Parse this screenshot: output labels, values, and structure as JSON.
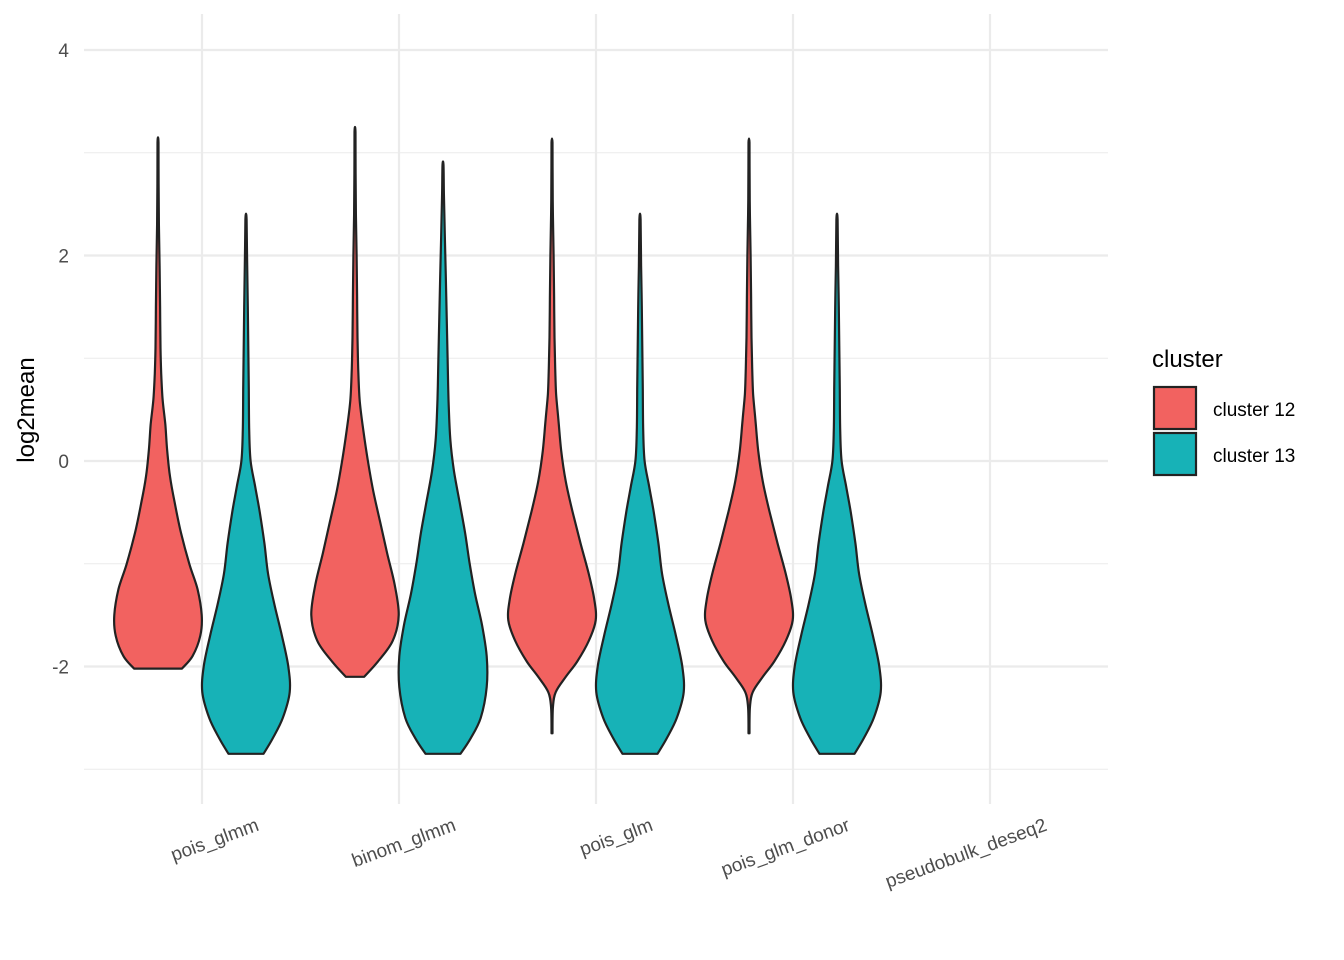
{
  "chart_data": {
    "type": "violin",
    "title": "",
    "xlabel": "",
    "ylabel": "log2mean",
    "ylim": [
      -3.0,
      4.3
    ],
    "y_ticks": [
      -2,
      0,
      2,
      4
    ],
    "y_tick_labels": [
      "-2",
      "0",
      "2",
      "4"
    ],
    "categories": [
      "pois_glmm",
      "binom_glmm",
      "pois_glm",
      "pois_glm_donor",
      "pseudobulk_deseq2"
    ],
    "grid": true,
    "legend": {
      "title": "cluster",
      "position": "right",
      "entries": [
        {
          "label": "cluster 12",
          "color": "#F8766D"
        },
        {
          "label": "cluster 13",
          "color": "#00BFC4"
        }
      ]
    },
    "series": [
      {
        "name": "cluster 12",
        "color": "#F26260",
        "violins": [
          {
            "category": "pois_glmm",
            "min": -2.02,
            "max": 3.1,
            "profile": [
              [
                -2.02,
                0.52
              ],
              [
                -1.9,
                0.75
              ],
              [
                -1.7,
                0.92
              ],
              [
                -1.5,
                0.95
              ],
              [
                -1.25,
                0.86
              ],
              [
                -1.0,
                0.68
              ],
              [
                -0.7,
                0.5
              ],
              [
                -0.4,
                0.36
              ],
              [
                -0.15,
                0.26
              ],
              [
                0.1,
                0.2
              ],
              [
                0.35,
                0.16
              ],
              [
                0.6,
                0.1
              ],
              [
                0.85,
                0.07
              ],
              [
                1.1,
                0.055
              ],
              [
                1.5,
                0.045
              ],
              [
                1.9,
                0.035
              ],
              [
                2.3,
                0.02
              ],
              [
                2.7,
                0.012
              ],
              [
                3.1,
                0.01
              ]
            ]
          },
          {
            "category": "binom_glmm",
            "min": -2.1,
            "max": 3.2,
            "profile": [
              [
                -2.1,
                0.2
              ],
              [
                -1.95,
                0.5
              ],
              [
                -1.75,
                0.82
              ],
              [
                -1.5,
                0.95
              ],
              [
                -1.2,
                0.86
              ],
              [
                -0.9,
                0.7
              ],
              [
                -0.6,
                0.55
              ],
              [
                -0.3,
                0.4
              ],
              [
                0.0,
                0.28
              ],
              [
                0.3,
                0.18
              ],
              [
                0.6,
                0.1
              ],
              [
                0.9,
                0.07
              ],
              [
                1.2,
                0.055
              ],
              [
                1.6,
                0.045
              ],
              [
                2.0,
                0.035
              ],
              [
                2.4,
                0.02
              ],
              [
                2.8,
                0.012
              ],
              [
                3.2,
                0.01
              ]
            ]
          },
          {
            "category": "pois_glm",
            "min": -2.65,
            "max": 3.1,
            "profile": [
              [
                -2.65,
                0.01
              ],
              [
                -2.4,
                0.02
              ],
              [
                -2.25,
                0.08
              ],
              [
                -2.1,
                0.3
              ],
              [
                -1.95,
                0.55
              ],
              [
                -1.75,
                0.8
              ],
              [
                -1.55,
                0.95
              ],
              [
                -1.35,
                0.92
              ],
              [
                -1.1,
                0.8
              ],
              [
                -0.8,
                0.62
              ],
              [
                -0.5,
                0.45
              ],
              [
                -0.2,
                0.3
              ],
              [
                0.1,
                0.2
              ],
              [
                0.4,
                0.14
              ],
              [
                0.65,
                0.09
              ],
              [
                0.9,
                0.07
              ],
              [
                1.2,
                0.055
              ],
              [
                1.6,
                0.045
              ],
              [
                2.0,
                0.035
              ],
              [
                2.4,
                0.02
              ],
              [
                2.8,
                0.012
              ],
              [
                3.1,
                0.01
              ]
            ]
          },
          {
            "category": "pois_glm_donor",
            "min": -2.65,
            "max": 3.1,
            "profile": [
              [
                -2.65,
                0.01
              ],
              [
                -2.4,
                0.02
              ],
              [
                -2.25,
                0.08
              ],
              [
                -2.1,
                0.3
              ],
              [
                -1.95,
                0.55
              ],
              [
                -1.75,
                0.8
              ],
              [
                -1.55,
                0.95
              ],
              [
                -1.35,
                0.92
              ],
              [
                -1.1,
                0.8
              ],
              [
                -0.8,
                0.62
              ],
              [
                -0.5,
                0.45
              ],
              [
                -0.2,
                0.3
              ],
              [
                0.1,
                0.2
              ],
              [
                0.4,
                0.14
              ],
              [
                0.65,
                0.09
              ],
              [
                0.9,
                0.07
              ],
              [
                1.2,
                0.055
              ],
              [
                1.6,
                0.045
              ],
              [
                2.0,
                0.035
              ],
              [
                2.4,
                0.02
              ],
              [
                2.8,
                0.012
              ],
              [
                3.1,
                0.01
              ]
            ]
          }
        ]
      },
      {
        "name": "cluster 13",
        "color": "#17B2B7",
        "violins": [
          {
            "category": "pois_glmm",
            "min": -2.85,
            "max": 2.35,
            "profile": [
              [
                -2.85,
                0.38
              ],
              [
                -2.7,
                0.58
              ],
              [
                -2.5,
                0.8
              ],
              [
                -2.25,
                0.95
              ],
              [
                -2.0,
                0.92
              ],
              [
                -1.7,
                0.78
              ],
              [
                -1.4,
                0.62
              ],
              [
                -1.1,
                0.48
              ],
              [
                -0.8,
                0.4
              ],
              [
                -0.5,
                0.3
              ],
              [
                -0.25,
                0.2
              ],
              [
                0.0,
                0.1
              ],
              [
                0.3,
                0.07
              ],
              [
                0.7,
                0.06
              ],
              [
                1.1,
                0.05
              ],
              [
                1.5,
                0.04
              ],
              [
                1.9,
                0.025
              ],
              [
                2.35,
                0.012
              ]
            ]
          },
          {
            "category": "binom_glmm",
            "min": -2.85,
            "max": 2.88,
            "profile": [
              [
                -2.85,
                0.38
              ],
              [
                -2.7,
                0.6
              ],
              [
                -2.5,
                0.82
              ],
              [
                -2.2,
                0.95
              ],
              [
                -1.9,
                0.95
              ],
              [
                -1.6,
                0.85
              ],
              [
                -1.3,
                0.7
              ],
              [
                -1.0,
                0.58
              ],
              [
                -0.7,
                0.48
              ],
              [
                -0.4,
                0.36
              ],
              [
                -0.1,
                0.24
              ],
              [
                0.2,
                0.16
              ],
              [
                0.6,
                0.12
              ],
              [
                1.0,
                0.1
              ],
              [
                1.4,
                0.08
              ],
              [
                1.8,
                0.06
              ],
              [
                2.2,
                0.04
              ],
              [
                2.6,
                0.02
              ],
              [
                2.88,
                0.01
              ]
            ]
          },
          {
            "category": "pois_glm",
            "min": -2.85,
            "max": 2.35,
            "profile": [
              [
                -2.85,
                0.38
              ],
              [
                -2.7,
                0.58
              ],
              [
                -2.5,
                0.8
              ],
              [
                -2.25,
                0.95
              ],
              [
                -2.0,
                0.92
              ],
              [
                -1.7,
                0.78
              ],
              [
                -1.4,
                0.62
              ],
              [
                -1.1,
                0.48
              ],
              [
                -0.8,
                0.4
              ],
              [
                -0.5,
                0.3
              ],
              [
                -0.25,
                0.2
              ],
              [
                0.0,
                0.1
              ],
              [
                0.3,
                0.07
              ],
              [
                0.7,
                0.06
              ],
              [
                1.1,
                0.05
              ],
              [
                1.5,
                0.04
              ],
              [
                1.9,
                0.025
              ],
              [
                2.35,
                0.012
              ]
            ]
          },
          {
            "category": "pois_glm_donor",
            "min": -2.85,
            "max": 2.35,
            "profile": [
              [
                -2.85,
                0.38
              ],
              [
                -2.7,
                0.58
              ],
              [
                -2.5,
                0.8
              ],
              [
                -2.25,
                0.95
              ],
              [
                -2.0,
                0.92
              ],
              [
                -1.7,
                0.78
              ],
              [
                -1.4,
                0.62
              ],
              [
                -1.1,
                0.48
              ],
              [
                -0.8,
                0.4
              ],
              [
                -0.5,
                0.3
              ],
              [
                -0.25,
                0.2
              ],
              [
                0.0,
                0.1
              ],
              [
                0.3,
                0.07
              ],
              [
                0.7,
                0.06
              ],
              [
                1.1,
                0.05
              ],
              [
                1.5,
                0.04
              ],
              [
                1.9,
                0.025
              ],
              [
                2.35,
                0.012
              ]
            ]
          }
        ]
      }
    ]
  }
}
